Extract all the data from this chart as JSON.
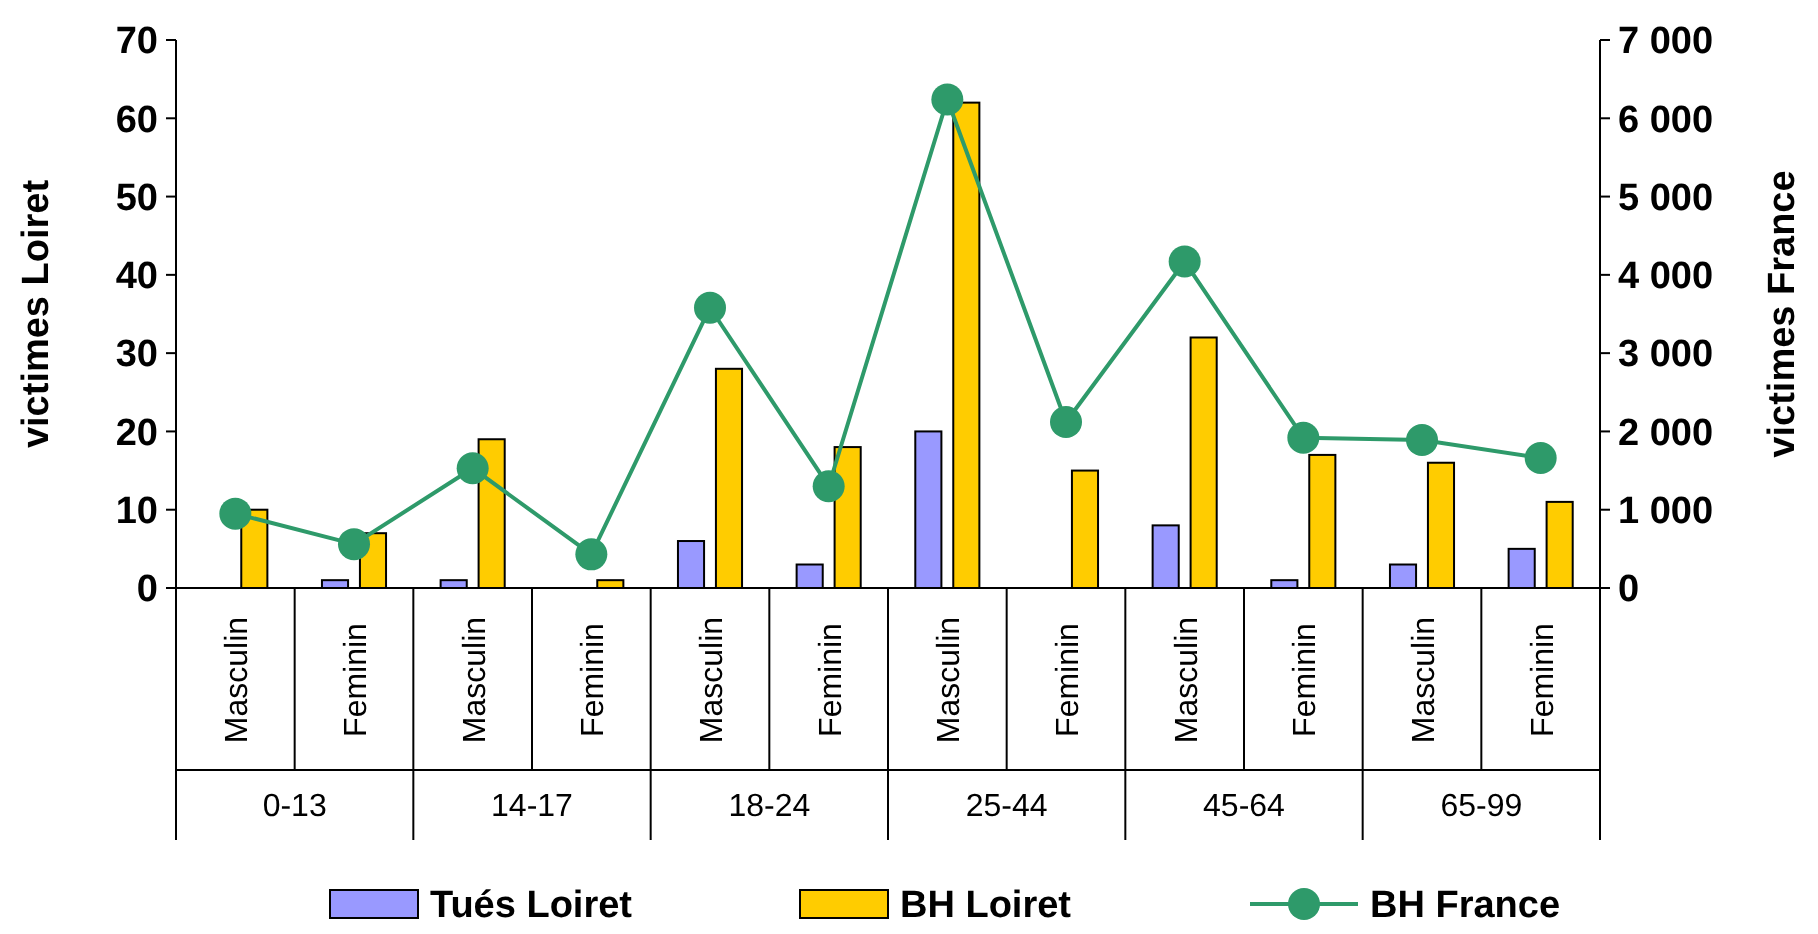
{
  "chart_data": {
    "type": "bar",
    "ylabel": "victimes Loiret",
    "y2label": "victimes France",
    "categories": [
      "Masculin",
      "Feminin",
      "Masculin",
      "Feminin",
      "Masculin",
      "Feminin",
      "Masculin",
      "Feminin",
      "Masculin",
      "Feminin",
      "Masculin",
      "Feminin"
    ],
    "annotations": [
      "0-13",
      "14-17",
      "18-24",
      "25-44",
      "45-64",
      "65-99"
    ],
    "series": [
      {
        "name": "Tués Loiret",
        "color": "#9999ff",
        "values": [
          0,
          1,
          1,
          0,
          6,
          3,
          20,
          0,
          8,
          1,
          3,
          5
        ]
      },
      {
        "name": "BH Loiret",
        "color": "#ffcc00",
        "values": [
          10,
          7,
          19,
          1,
          28,
          18,
          62,
          15,
          32,
          17,
          16,
          11
        ]
      },
      {
        "name": "BH France",
        "color": "#2e9a6a",
        "type": "line",
        "axis": "y2",
        "marker": "circle",
        "values": [
          950,
          560,
          1530,
          430,
          3580,
          1300,
          6240,
          2120,
          4170,
          1920,
          1890,
          1660
        ]
      }
    ],
    "ylim": [
      0,
      70
    ],
    "yticks": [
      0,
      10,
      20,
      30,
      40,
      50,
      60,
      70
    ],
    "y2lim": [
      0,
      7000
    ],
    "y2ticks": [
      0,
      {
        "value": 1000,
        "label": "1 000"
      },
      {
        "value": 2000,
        "label": "2 000"
      },
      {
        "value": 3000,
        "label": "3 000"
      },
      {
        "value": 4000,
        "label": "4 000"
      },
      {
        "value": 5000,
        "label": "5 000"
      },
      {
        "value": 6000,
        "label": "6 000"
      },
      {
        "value": 7000,
        "label": "7 000"
      }
    ],
    "legend": "bottom",
    "grid": false
  }
}
